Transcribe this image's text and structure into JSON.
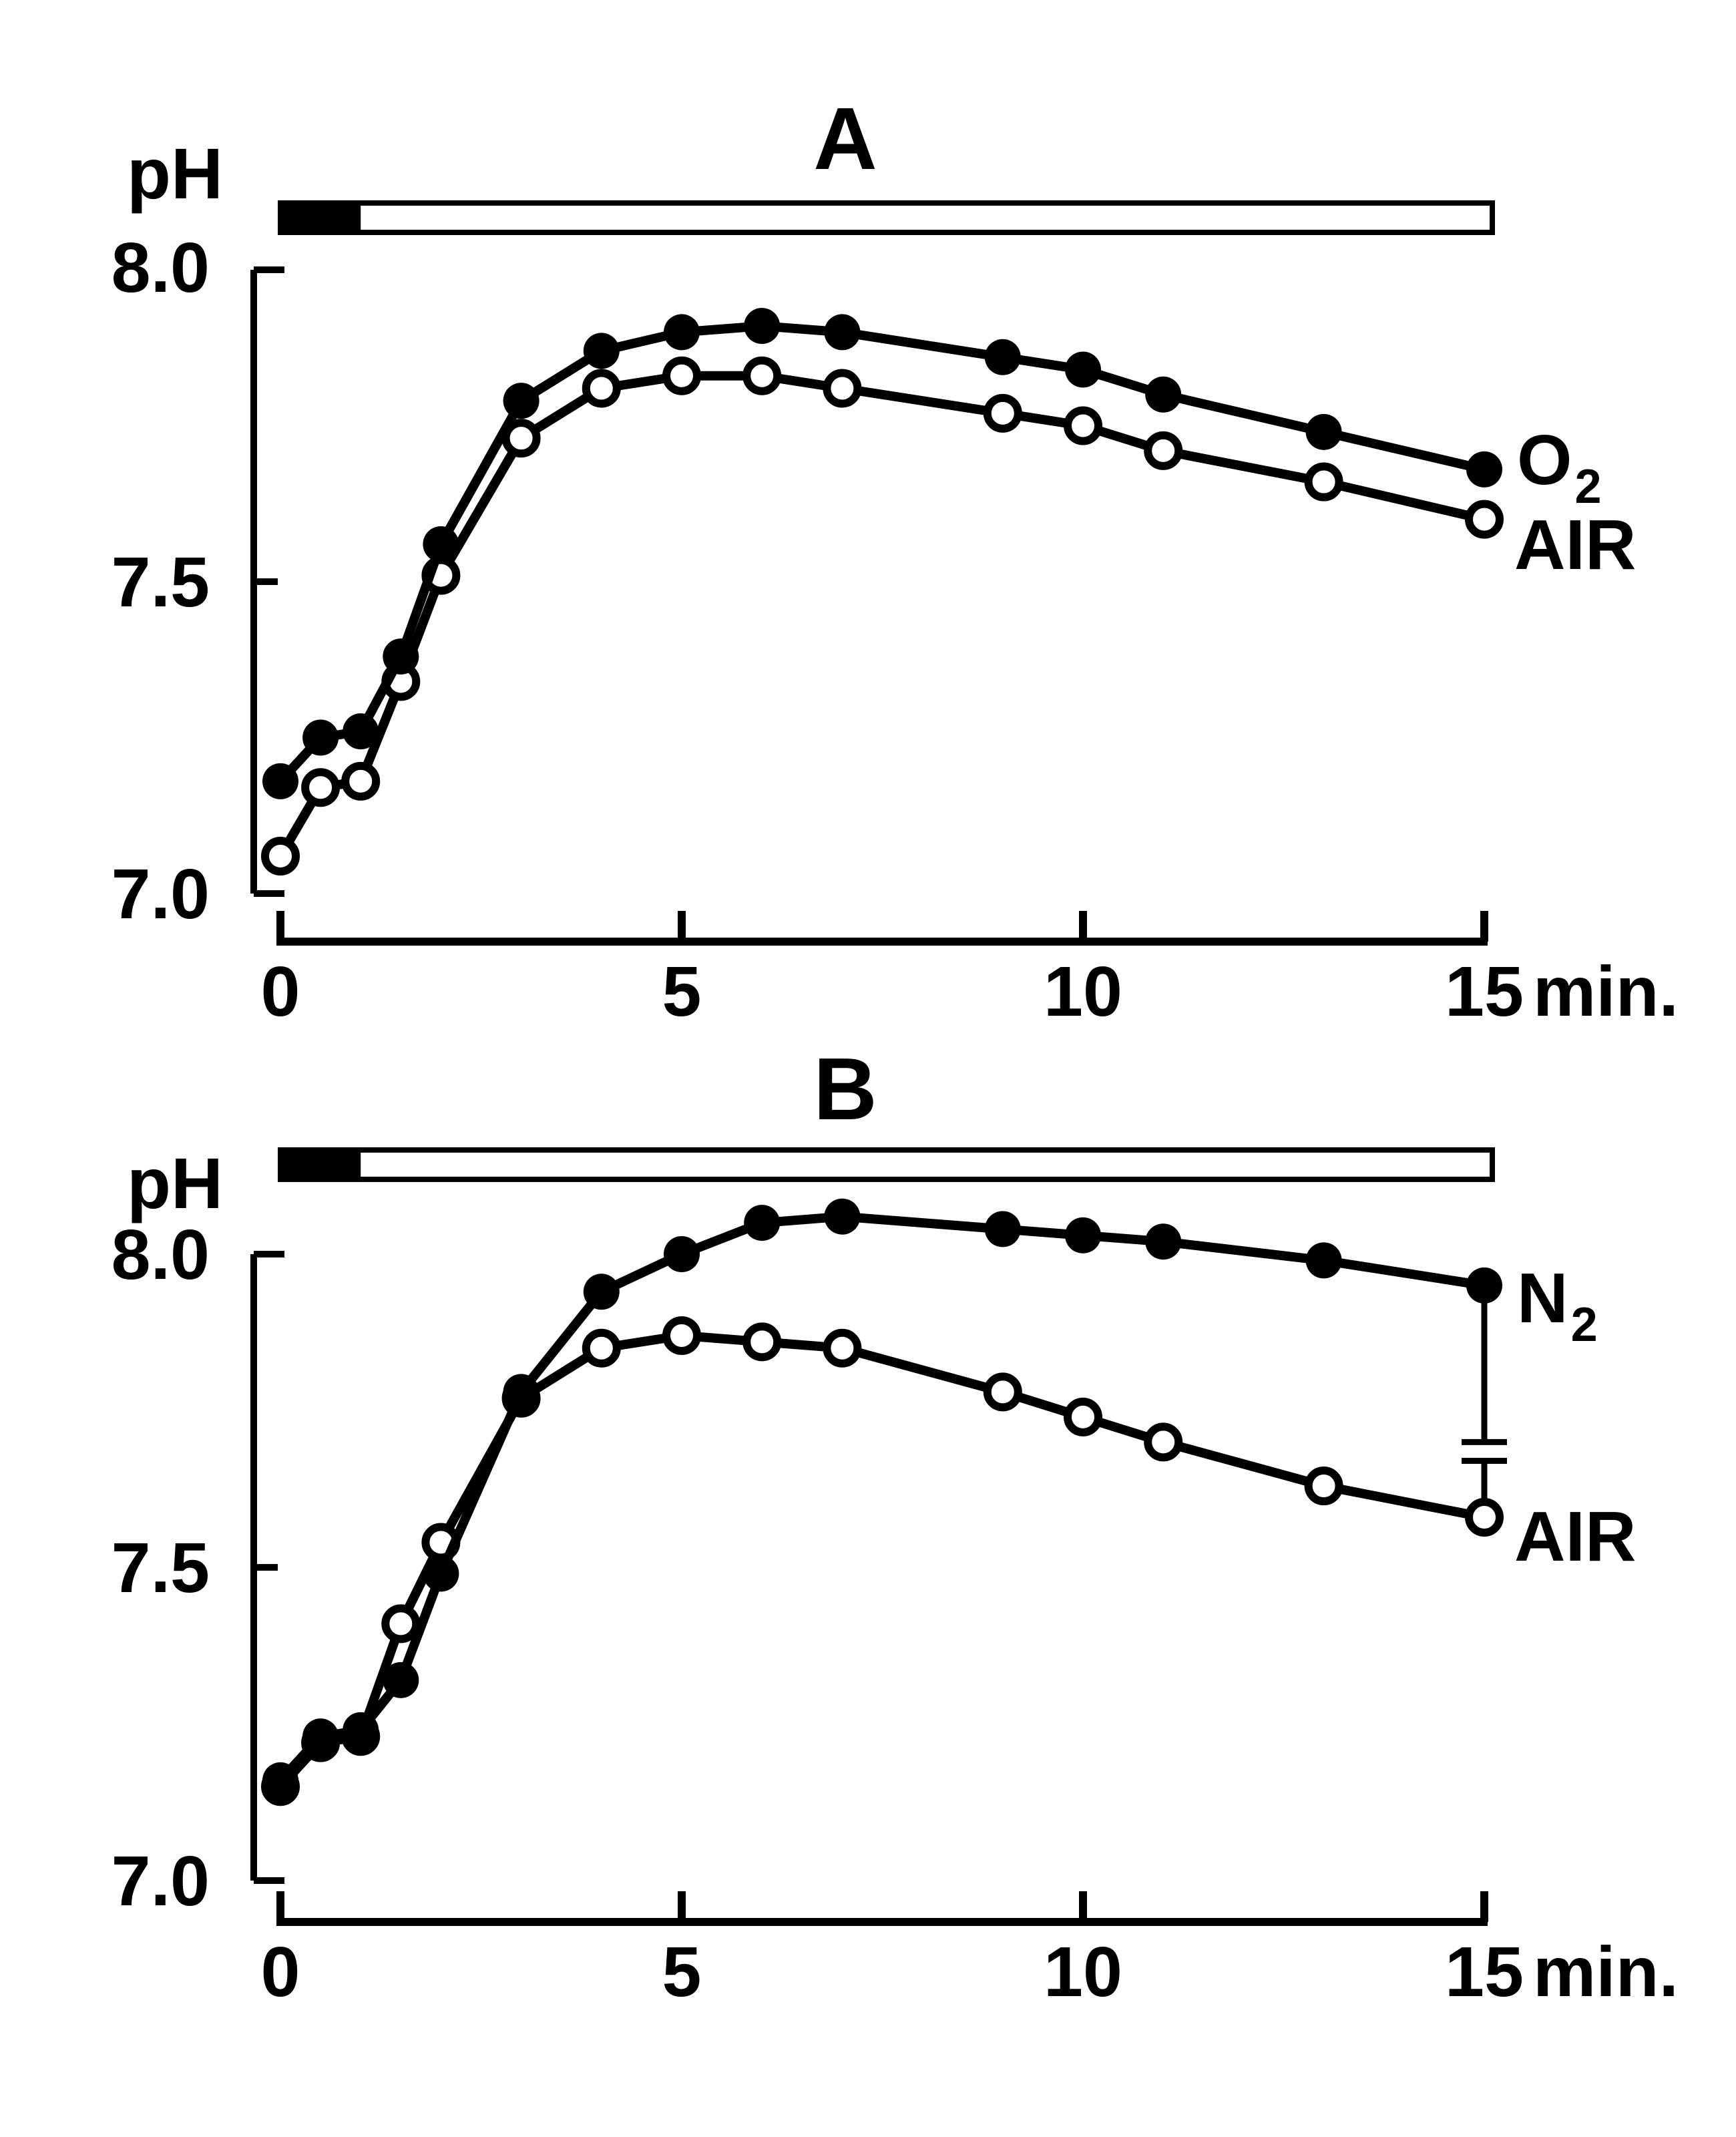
{
  "figure": {
    "background_color": "#ffffff",
    "ink_color": "#000000",
    "description_markers": [
      "filled-circle-marker",
      "open-circle-marker"
    ]
  },
  "chart_data": [
    {
      "type": "line",
      "panel": "A",
      "title": "A",
      "y_axis_label": "pH",
      "x_unit_label": "min.",
      "xlim": [
        0,
        15
      ],
      "ylim": [
        7.0,
        8.0
      ],
      "grid": false,
      "yticks": [
        {
          "label": "8.0",
          "value": 8.0
        },
        {
          "label": "7.5",
          "value": 7.5
        },
        {
          "label": "7.0",
          "value": 7.0
        }
      ],
      "xticks": [
        {
          "label": "0",
          "value": 0
        },
        {
          "label": "5",
          "value": 5
        },
        {
          "label": "10",
          "value": 10
        },
        {
          "label": "15",
          "value": 15
        }
      ],
      "stimulus_bar": {
        "start_min": 0,
        "dark_until_min": 1,
        "end_min": 15.1,
        "dark_color": "#000000",
        "light_color": "#ffffff"
      },
      "x": [
        0,
        0.5,
        1,
        1.5,
        2,
        3,
        4,
        5,
        6,
        7,
        9,
        10,
        11,
        13,
        15
      ],
      "series": [
        {
          "name": "AIR",
          "label": "AIR",
          "marker": "open-circle",
          "color": "#000000",
          "values": [
            7.06,
            7.17,
            7.18,
            7.34,
            7.51,
            7.73,
            7.81,
            7.83,
            7.83,
            7.81,
            7.77,
            7.75,
            7.71,
            7.66,
            7.6
          ]
        },
        {
          "name": "O2",
          "label": "O₂",
          "label_main": "O",
          "label_sub": "2",
          "marker": "filled-circle",
          "color": "#000000",
          "values": [
            7.18,
            7.25,
            7.26,
            7.38,
            7.56,
            7.79,
            7.87,
            7.9,
            7.91,
            7.9,
            7.86,
            7.84,
            7.8,
            7.74,
            7.68
          ]
        }
      ]
    },
    {
      "type": "line",
      "panel": "B",
      "title": "B",
      "y_axis_label": "pH",
      "x_unit_label": "min.",
      "xlim": [
        0,
        15
      ],
      "ylim": [
        7.0,
        8.0
      ],
      "grid": false,
      "yticks": [
        {
          "label": "8.0",
          "value": 8.0
        },
        {
          "label": "7.5",
          "value": 7.5
        },
        {
          "label": "7.0",
          "value": 7.0
        }
      ],
      "xticks": [
        {
          "label": "0",
          "value": 0
        },
        {
          "label": "5",
          "value": 5
        },
        {
          "label": "10",
          "value": 10
        },
        {
          "label": "15",
          "value": 15
        }
      ],
      "stimulus_bar": {
        "start_min": 0,
        "dark_until_min": 1,
        "end_min": 15.1,
        "dark_color": "#000000",
        "light_color": "#ffffff"
      },
      "x": [
        0,
        0.5,
        1,
        1.5,
        2,
        3,
        4,
        5,
        6,
        7,
        9,
        10,
        11,
        13,
        15
      ],
      "series": [
        {
          "name": "AIR",
          "label": "AIR",
          "marker": "open-circle",
          "color": "#000000",
          "values": [
            7.15,
            7.22,
            7.23,
            7.41,
            7.54,
            7.77,
            7.85,
            7.87,
            7.86,
            7.85,
            7.78,
            7.74,
            7.7,
            7.63,
            7.58
          ]
        },
        {
          "name": "N2",
          "label": "N₂",
          "label_main": "N",
          "label_sub": "2",
          "marker": "filled-circle",
          "color": "#000000",
          "values": [
            7.16,
            7.23,
            7.24,
            7.32,
            7.49,
            7.78,
            7.94,
            8.0,
            8.05,
            8.06,
            8.04,
            8.03,
            8.02,
            7.99,
            7.95
          ]
        }
      ],
      "error_bars": [
        {
          "x": 15,
          "series": "N2",
          "from_ph": 7.95,
          "to_ph": 7.7
        },
        {
          "x": 15,
          "series": "AIR",
          "from_ph": 7.58,
          "to_ph": 7.67
        }
      ]
    }
  ]
}
